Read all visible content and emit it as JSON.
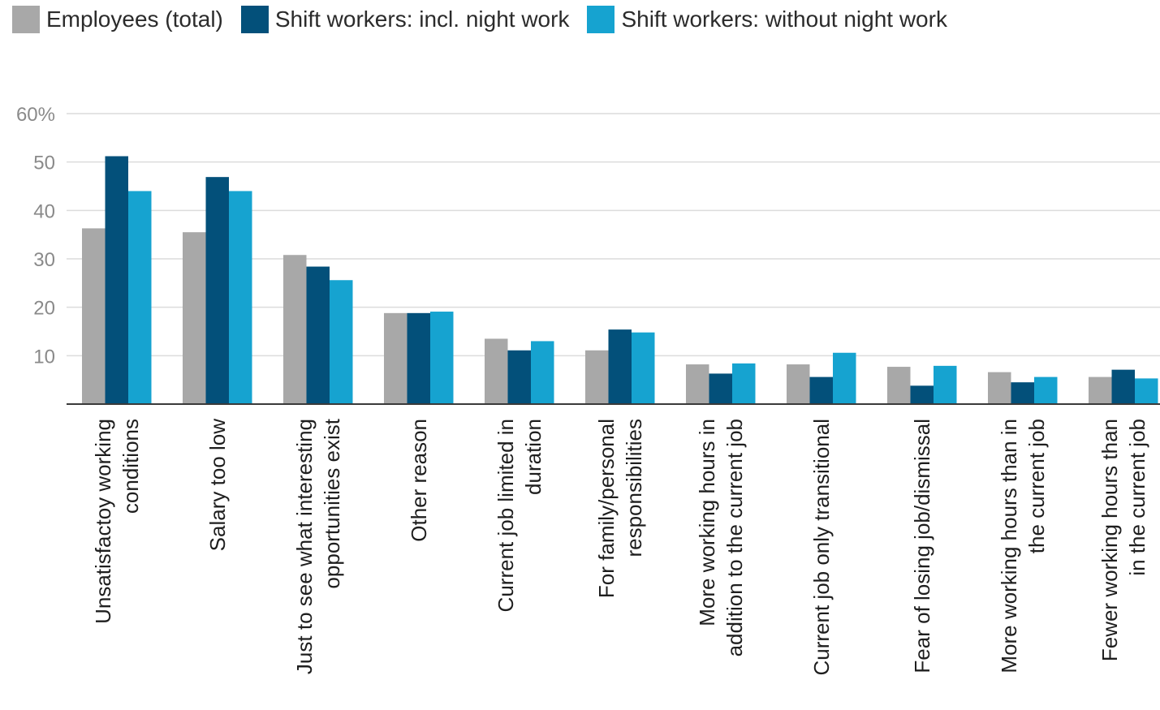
{
  "chart_data": {
    "type": "bar",
    "ylim": [
      0,
      60
    ],
    "yticks": [
      {
        "value": 10,
        "label": "10"
      },
      {
        "value": 20,
        "label": "20"
      },
      {
        "value": 30,
        "label": "30"
      },
      {
        "value": 40,
        "label": "40"
      },
      {
        "value": 50,
        "label": "50"
      },
      {
        "value": 60,
        "label": "60%"
      }
    ],
    "grid": true,
    "legend_position": "top-left",
    "categories": [
      [
        "Unsatisfactoy working",
        "conditions"
      ],
      [
        "Salary too low"
      ],
      [
        "Just to see what interesting",
        "opportunities exist"
      ],
      [
        "Other reason"
      ],
      [
        "Current job limited in",
        "duration"
      ],
      [
        "For family/personal",
        "responsibilities"
      ],
      [
        "More working hours in",
        "addition to the current job"
      ],
      [
        "Current job only transitional"
      ],
      [
        "Fear of losing job/dismissal"
      ],
      [
        "More working hours than in",
        "the current job"
      ],
      [
        "Fewer working hours than",
        "in the current job"
      ]
    ],
    "series": [
      {
        "name": "Employees (total)",
        "color": "#a8a8a8",
        "values": [
          36.3,
          35.5,
          30.8,
          18.8,
          13.5,
          11.1,
          8.2,
          8.2,
          7.7,
          6.6,
          5.6
        ]
      },
      {
        "name": "Shift workers: incl. night work",
        "color": "#03507a",
        "values": [
          51.2,
          46.9,
          28.4,
          18.8,
          11.1,
          15.4,
          6.3,
          5.6,
          3.8,
          4.5,
          7.1
        ]
      },
      {
        "name": "Shift workers: without night work",
        "color": "#16a3d0",
        "values": [
          44.0,
          44.0,
          25.6,
          19.1,
          13.0,
          14.8,
          8.4,
          10.6,
          7.9,
          5.6,
          5.3
        ]
      }
    ]
  }
}
